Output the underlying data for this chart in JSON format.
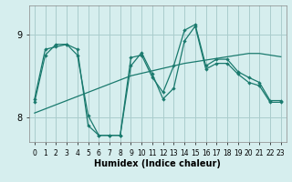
{
  "title": "",
  "xlabel": "Humidex (Indice chaleur)",
  "bg_color": "#d6eeee",
  "grid_color": "#aacccc",
  "line_color": "#1a7a6e",
  "xlim": [
    -0.5,
    23.5
  ],
  "ylim": [
    7.7,
    9.35
  ],
  "yticks": [
    8,
    9
  ],
  "xticks": [
    0,
    1,
    2,
    3,
    4,
    5,
    6,
    7,
    8,
    9,
    10,
    11,
    12,
    13,
    14,
    15,
    16,
    17,
    18,
    19,
    20,
    21,
    22,
    23
  ],
  "line1_y": [
    8.22,
    8.82,
    8.85,
    8.88,
    8.82,
    7.9,
    7.78,
    7.78,
    7.78,
    8.72,
    8.75,
    8.48,
    8.3,
    8.62,
    9.05,
    9.12,
    8.62,
    8.7,
    8.7,
    8.55,
    8.48,
    8.42,
    8.2,
    8.2
  ],
  "line2_y": [
    8.18,
    8.75,
    8.88,
    8.88,
    8.75,
    8.02,
    7.78,
    7.78,
    7.78,
    8.62,
    8.78,
    8.52,
    8.22,
    8.35,
    8.92,
    9.1,
    8.58,
    8.65,
    8.65,
    8.52,
    8.42,
    8.38,
    8.18,
    8.18
  ],
  "line3_y": [
    8.05,
    8.1,
    8.15,
    8.2,
    8.25,
    8.3,
    8.35,
    8.4,
    8.45,
    8.5,
    8.53,
    8.56,
    8.59,
    8.62,
    8.65,
    8.67,
    8.69,
    8.71,
    8.73,
    8.75,
    8.77,
    8.77,
    8.75,
    8.73
  ]
}
